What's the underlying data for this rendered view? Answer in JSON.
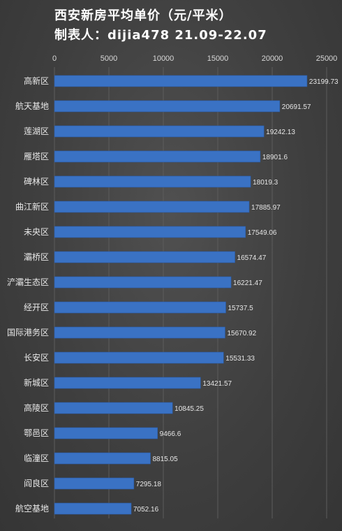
{
  "title_line_1": "西安新房平均单价（元/平米）",
  "title_line_2": "制表人：dijia478  21.09-22.07",
  "colors": {
    "bar": "#3a72c4",
    "bar_edge": "#2a5aa3",
    "grid": "#5c5c5c",
    "background": "#444444"
  },
  "chart_data": {
    "type": "bar",
    "orientation": "horizontal",
    "title": "西安新房平均单价（元/平米）",
    "xlim": [
      0,
      25000
    ],
    "x_ticks": [
      0,
      5000,
      10000,
      15000,
      20000,
      25000
    ],
    "x_axis_position": "top",
    "grid": true,
    "categories": [
      "高新区",
      "航天基地",
      "莲湖区",
      "雁塔区",
      "碑林区",
      "曲江新区",
      "未央区",
      "灞桥区",
      "浐灞生态区",
      "经开区",
      "国际港务区",
      "长安区",
      "新城区",
      "高陵区",
      "鄠邑区",
      "临潼区",
      "阎良区",
      "航空基地"
    ],
    "values": [
      23199.73,
      20691.57,
      19242.13,
      18901.6,
      18019.3,
      17885.97,
      17549.06,
      16574.47,
      16221.47,
      15737.5,
      15670.92,
      15531.33,
      13421.57,
      10845.25,
      9466.6,
      8815.05,
      7295.18,
      7052.16
    ],
    "value_labels": [
      "23199.73",
      "20691.57",
      "19242.13",
      "18901.6",
      "18019.3",
      "17885.97",
      "17549.06",
      "16574.47",
      "16221.47",
      "15737.5",
      "15670.92",
      "15531.33",
      "13421.57",
      "10845.25",
      "9466.6",
      "8815.05",
      "7295.18",
      "7052.16"
    ]
  }
}
